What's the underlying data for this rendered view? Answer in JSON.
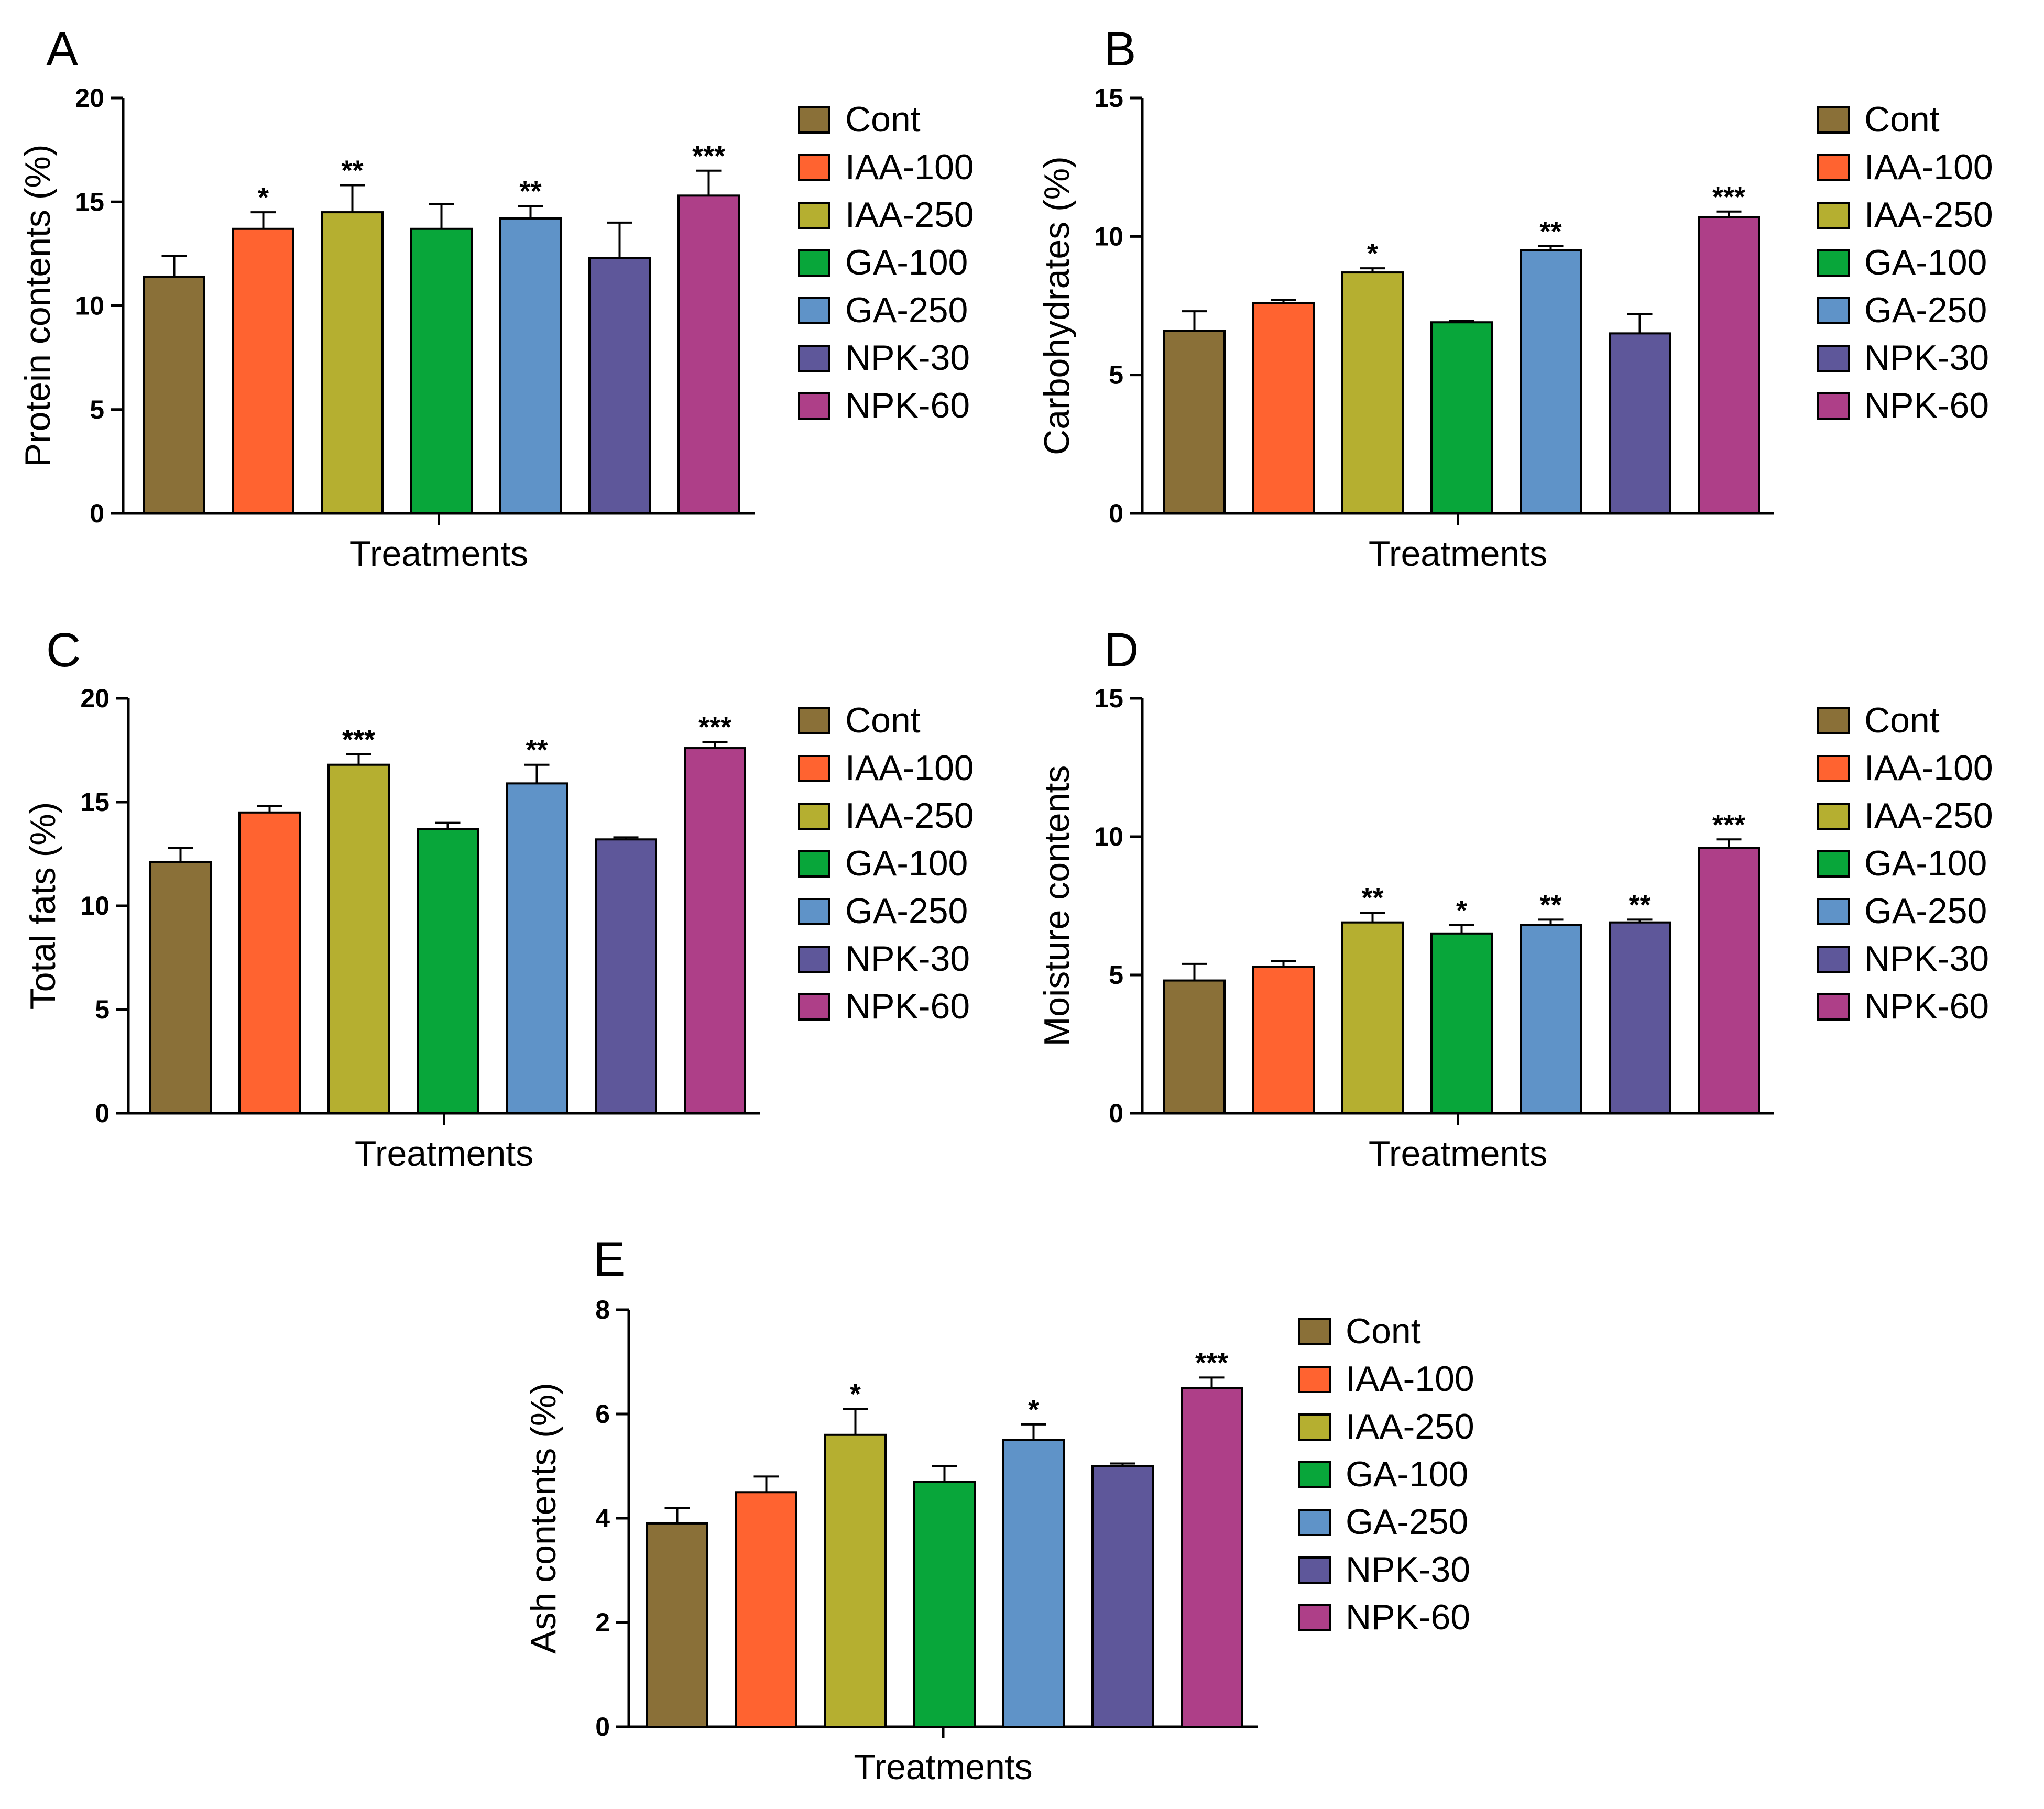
{
  "figure": {
    "treatments": [
      "Cont",
      "IAA-100",
      "IAA-250",
      "GA-100",
      "GA-250",
      "NPK-30",
      "NPK-60"
    ],
    "colors": [
      "#8A7038",
      "#FF6330",
      "#B5AF30",
      "#08A63A",
      "#5F93C8",
      "#5E579A",
      "#AE3F88"
    ]
  },
  "chart_data": [
    {
      "type": "bar",
      "panel": "A",
      "categories": [
        "Cont",
        "IAA-100",
        "IAA-250",
        "GA-100",
        "GA-250",
        "NPK-30",
        "NPK-60"
      ],
      "values": [
        11.4,
        13.7,
        14.5,
        13.7,
        14.2,
        12.3,
        15.3
      ],
      "errors": [
        1.0,
        0.8,
        1.3,
        1.2,
        0.6,
        1.7,
        1.2
      ],
      "significance": [
        "",
        "*",
        "**",
        "",
        "**",
        "",
        "***"
      ],
      "xlabel": "Treatments",
      "ylabel": "Protein contents (%)",
      "ylim": [
        0,
        20
      ],
      "yticks": [
        0,
        5,
        10,
        15,
        20
      ],
      "legend": [
        "Cont",
        "IAA-100",
        "IAA-250",
        "GA-100",
        "GA-250",
        "NPK-30",
        "NPK-60"
      ]
    },
    {
      "type": "bar",
      "panel": "B",
      "categories": [
        "Cont",
        "IAA-100",
        "IAA-250",
        "GA-100",
        "GA-250",
        "NPK-30",
        "NPK-60"
      ],
      "values": [
        6.6,
        7.6,
        8.7,
        6.9,
        9.5,
        6.5,
        10.7
      ],
      "errors": [
        0.7,
        0.1,
        0.15,
        0.05,
        0.15,
        0.7,
        0.2
      ],
      "significance": [
        "",
        "",
        "*",
        "",
        "**",
        "",
        "***"
      ],
      "xlabel": "Treatments",
      "ylabel": "Carbohydrates (%)",
      "ylim": [
        0,
        15
      ],
      "yticks": [
        0,
        5,
        10,
        15
      ],
      "legend": [
        "Cont",
        "IAA-100",
        "IAA-250",
        "GA-100",
        "GA-250",
        "NPK-30",
        "NPK-60"
      ]
    },
    {
      "type": "bar",
      "panel": "C",
      "categories": [
        "Cont",
        "IAA-100",
        "IAA-250",
        "GA-100",
        "GA-250",
        "NPK-30",
        "NPK-60"
      ],
      "values": [
        12.1,
        14.5,
        16.8,
        13.7,
        15.9,
        13.2,
        17.6
      ],
      "errors": [
        0.7,
        0.3,
        0.5,
        0.3,
        0.9,
        0.1,
        0.3
      ],
      "significance": [
        "",
        "",
        "***",
        "",
        "**",
        "",
        "***"
      ],
      "xlabel": "Treatments",
      "ylabel": "Total fats (%)",
      "ylim": [
        0,
        20
      ],
      "yticks": [
        0,
        5,
        10,
        15,
        20
      ],
      "legend": [
        "Cont",
        "IAA-100",
        "IAA-250",
        "GA-100",
        "GA-250",
        "NPK-30",
        "NPK-60"
      ]
    },
    {
      "type": "bar",
      "panel": "D",
      "categories": [
        "Cont",
        "IAA-100",
        "IAA-250",
        "GA-100",
        "GA-250",
        "NPK-30",
        "NPK-60"
      ],
      "values": [
        4.8,
        5.3,
        6.9,
        6.5,
        6.8,
        6.9,
        9.6
      ],
      "errors": [
        0.6,
        0.2,
        0.35,
        0.3,
        0.2,
        0.1,
        0.3
      ],
      "significance": [
        "",
        "",
        "**",
        "*",
        "**",
        "**",
        "***"
      ],
      "xlabel": "Treatments",
      "ylabel": "Moisture contents",
      "ylim": [
        0,
        15
      ],
      "yticks": [
        0,
        5,
        10,
        15
      ],
      "legend": [
        "Cont",
        "IAA-100",
        "IAA-250",
        "GA-100",
        "GA-250",
        "NPK-30",
        "NPK-60"
      ]
    },
    {
      "type": "bar",
      "panel": "E",
      "categories": [
        "Cont",
        "IAA-100",
        "IAA-250",
        "GA-100",
        "GA-250",
        "NPK-30",
        "NPK-60"
      ],
      "values": [
        3.9,
        4.5,
        5.6,
        4.7,
        5.5,
        5.0,
        6.5
      ],
      "errors": [
        0.3,
        0.3,
        0.5,
        0.3,
        0.3,
        0.05,
        0.2
      ],
      "significance": [
        "",
        "",
        "*",
        "",
        "*",
        "",
        "***"
      ],
      "xlabel": "Treatments",
      "ylabel": "Ash contents (%)",
      "ylim": [
        0,
        8
      ],
      "yticks": [
        0,
        2,
        4,
        6,
        8
      ],
      "legend": [
        "Cont",
        "IAA-100",
        "IAA-250",
        "GA-100",
        "GA-250",
        "NPK-30",
        "NPK-60"
      ]
    }
  ]
}
